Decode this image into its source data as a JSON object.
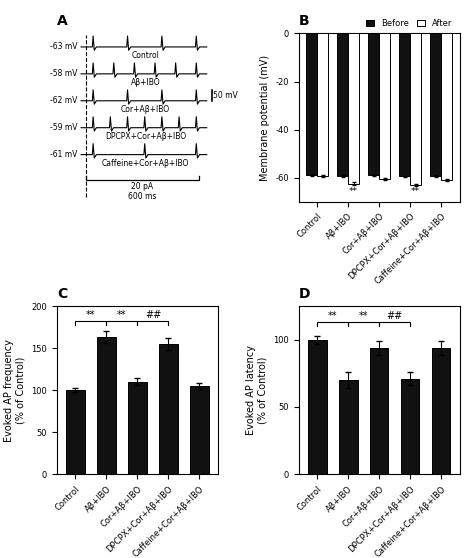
{
  "chart_data": [
    {
      "type": "traces",
      "title": "A",
      "categories": [
        "Control",
        "Aβ+IBO",
        "Cor+Aβ+IBO",
        "DPCPX+Cor+Aβ+IBO",
        "Caffeine+Cor+Aβ+IBO"
      ],
      "values": [
        4,
        6,
        4,
        7,
        3
      ],
      "annotations": [
        "-63 mV",
        "-58 mV",
        "-62 mV",
        "-59 mV",
        "-61 mV",
        "50 mV",
        "20 pA",
        "600 ms"
      ],
      "tick_labels": false
    },
    {
      "type": "bar",
      "title": "B",
      "categories": [
        "Control",
        "Aβ+IBO",
        "Cor+Aβ+IBO",
        "DPCPX+Cor+Aβ+IBO",
        "Caffeine+Cor+Aβ+IBO"
      ],
      "y_label": "Membrane potential (mV)",
      "series": [
        {
          "name": "Before",
          "color": "#111111",
          "values": [
            -59.0,
            -59.2,
            -59.0,
            -59.5,
            -59.2
          ],
          "errors": [
            0.4,
            0.4,
            0.5,
            0.4,
            0.4
          ]
        },
        {
          "name": "After",
          "color": "#ffffff",
          "values": [
            -59.2,
            -62.5,
            -60.5,
            -63.0,
            -61.0
          ],
          "errors": [
            0.5,
            0.6,
            0.5,
            0.4,
            0.4
          ]
        }
      ],
      "ylim": [
        -70,
        0
      ],
      "yticks": [
        -60,
        -40,
        -20,
        0
      ],
      "legend": "upper right",
      "annotations": [
        {
          "text": "**",
          "category": "Aβ+IBO",
          "series": "After"
        },
        {
          "text": "**",
          "category": "DPCPX+Cor+Aβ+IBO",
          "series": "After"
        }
      ]
    },
    {
      "type": "bar",
      "title": "C",
      "categories": [
        "Control",
        "Aβ+IBO",
        "Cor+Aβ+IBO",
        "DPCPX+Cor+Aβ+IBO",
        "Caffeine+Cor+Aβ+IBO"
      ],
      "values": [
        100,
        163,
        110,
        155,
        105
      ],
      "errors": [
        2,
        7,
        4,
        7,
        4
      ],
      "color": "#111111",
      "y_label": "Evoked AP frequency\n(% of Control)",
      "ylim": [
        0,
        200
      ],
      "yticks": [
        0,
        50,
        100,
        150,
        200
      ],
      "annotations": [
        {
          "text": "**",
          "from": "Control",
          "to": "Aβ+IBO",
          "y": 182
        },
        {
          "text": "**",
          "from": "Aβ+IBO",
          "to": "Cor+Aβ+IBO",
          "y": 182
        },
        {
          "text": "##",
          "from": "Cor+Aβ+IBO",
          "to": "DPCPX+Cor+Aβ+IBO",
          "y": 182
        }
      ]
    },
    {
      "type": "bar",
      "title": "D",
      "categories": [
        "Control",
        "Aβ+IBO",
        "Cor+Aβ+IBO",
        "DPCPX+Cor+Aβ+IBO",
        "Caffeine+Cor+Aβ+IBO"
      ],
      "values": [
        100,
        70,
        94,
        71,
        94
      ],
      "errors": [
        3,
        6,
        5,
        5,
        5
      ],
      "color": "#111111",
      "y_label": "Evoked AP latency\n(% of Control)",
      "ylim": [
        0,
        125
      ],
      "yticks": [
        0,
        50,
        100
      ],
      "annotations": [
        {
          "text": "**",
          "from": "Control",
          "to": "Aβ+IBO",
          "y": 113
        },
        {
          "text": "**",
          "from": "Aβ+IBO",
          "to": "Cor+Aβ+IBO",
          "y": 113
        },
        {
          "text": "##",
          "from": "Cor+Aβ+IBO",
          "to": "DPCPX+Cor+Aβ+IBO",
          "y": 113
        }
      ]
    }
  ]
}
